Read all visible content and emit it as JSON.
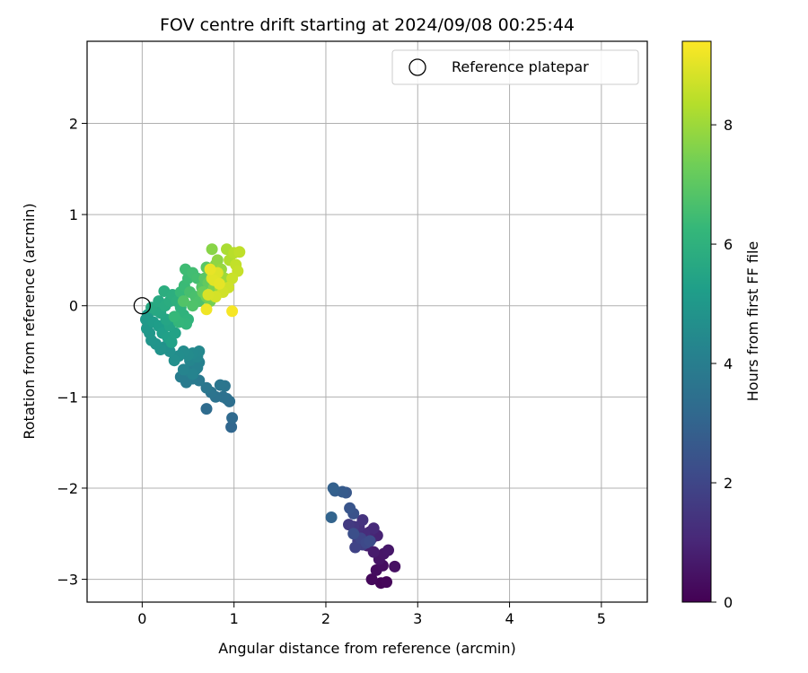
{
  "chart_data": {
    "type": "scatter",
    "title": "FOV centre drift starting at 2024/09/08 00:25:44",
    "xlabel": "Angular distance from reference (arcmin)",
    "ylabel": "Rotation from reference (arcmin)",
    "xlim": [
      -0.6,
      5.5
    ],
    "ylim": [
      -3.25,
      2.9
    ],
    "xticks": [
      0,
      1,
      2,
      3,
      4,
      5
    ],
    "xtick_labels": [
      "0",
      "1",
      "2",
      "3",
      "4",
      "5"
    ],
    "yticks": [
      -3,
      -2,
      -1,
      0,
      1,
      2
    ],
    "ytick_labels": [
      "−3",
      "−2",
      "−1",
      "0",
      "1",
      "2"
    ],
    "grid": true,
    "legend": {
      "position": "upper right",
      "entries": [
        "Reference platepar"
      ]
    },
    "reference_point": {
      "x": 0,
      "y": 0,
      "label": "Reference platepar"
    },
    "colorbar": {
      "label": "Hours from first FF file",
      "colormap": "viridis",
      "range": [
        0,
        9.4
      ],
      "ticks": [
        0,
        2,
        4,
        6,
        8
      ],
      "tick_labels": [
        "0",
        "2",
        "4",
        "6",
        "8"
      ]
    },
    "colors": {
      "reference_marker": "#000000",
      "grid": "#b0b0b0",
      "viridis": [
        "#440154",
        "#482878",
        "#3e4989",
        "#31688e",
        "#26828e",
        "#1f9e89",
        "#35b779",
        "#6ece58",
        "#b5de2b",
        "#fde725"
      ]
    },
    "series": [
      {
        "points": [
          [
            2.6,
            -3.04,
            0.1
          ],
          [
            2.66,
            -3.03,
            0.15
          ],
          [
            2.5,
            -3.0,
            0.2
          ],
          [
            2.55,
            -2.9,
            0.3
          ],
          [
            2.62,
            -2.85,
            0.35
          ],
          [
            2.75,
            -2.86,
            0.4
          ],
          [
            2.58,
            -2.78,
            0.5
          ],
          [
            2.63,
            -2.72,
            0.55
          ],
          [
            2.68,
            -2.68,
            0.6
          ],
          [
            2.52,
            -2.7,
            0.7
          ],
          [
            2.45,
            -2.63,
            0.75
          ],
          [
            2.5,
            -2.55,
            0.8
          ],
          [
            2.56,
            -2.52,
            0.9
          ],
          [
            2.48,
            -2.48,
            1.0
          ],
          [
            2.52,
            -2.44,
            1.1
          ],
          [
            2.42,
            -2.5,
            1.2
          ],
          [
            2.36,
            -2.42,
            1.3
          ],
          [
            2.4,
            -2.35,
            1.4
          ],
          [
            2.3,
            -2.42,
            1.5
          ],
          [
            2.25,
            -2.4,
            1.6
          ],
          [
            2.35,
            -2.58,
            1.7
          ],
          [
            2.4,
            -2.62,
            1.8
          ],
          [
            2.32,
            -2.65,
            1.9
          ],
          [
            2.38,
            -2.55,
            2.0
          ],
          [
            2.44,
            -2.6,
            2.1
          ],
          [
            2.48,
            -2.58,
            2.2
          ],
          [
            2.3,
            -2.5,
            2.3
          ],
          [
            2.3,
            -2.28,
            2.4
          ],
          [
            2.26,
            -2.22,
            2.5
          ],
          [
            2.22,
            -2.05,
            2.6
          ],
          [
            2.18,
            -2.04,
            2.7
          ],
          [
            2.1,
            -2.03,
            2.8
          ],
          [
            2.08,
            -2.0,
            2.9
          ],
          [
            2.06,
            -2.32,
            3.0
          ],
          [
            0.97,
            -1.33,
            3.1
          ],
          [
            0.98,
            -1.23,
            3.2
          ],
          [
            0.7,
            -1.13,
            3.3
          ],
          [
            0.95,
            -1.05,
            3.4
          ],
          [
            0.92,
            -1.02,
            3.45
          ],
          [
            0.88,
            -1.0,
            3.5
          ],
          [
            0.8,
            -1.0,
            3.55
          ],
          [
            0.75,
            -0.95,
            3.6
          ],
          [
            0.9,
            -0.88,
            3.65
          ],
          [
            0.85,
            -0.87,
            3.7
          ],
          [
            0.7,
            -0.9,
            3.75
          ],
          [
            0.62,
            -0.82,
            3.8
          ],
          [
            0.55,
            -0.8,
            3.85
          ],
          [
            0.48,
            -0.84,
            3.9
          ],
          [
            0.42,
            -0.78,
            3.95
          ],
          [
            0.5,
            -0.72,
            4.0
          ],
          [
            0.58,
            -0.7,
            4.05
          ],
          [
            0.62,
            -0.62,
            4.1
          ],
          [
            0.6,
            -0.68,
            4.15
          ],
          [
            0.55,
            -0.75,
            4.2
          ],
          [
            0.45,
            -0.7,
            4.25
          ],
          [
            0.52,
            -0.6,
            4.3
          ],
          [
            0.6,
            -0.56,
            4.35
          ],
          [
            0.62,
            -0.5,
            4.4
          ],
          [
            0.55,
            -0.52,
            4.45
          ],
          [
            0.5,
            -0.54,
            4.5
          ],
          [
            0.45,
            -0.5,
            4.55
          ],
          [
            0.4,
            -0.55,
            4.6
          ],
          [
            0.35,
            -0.6,
            4.65
          ],
          [
            0.3,
            -0.5,
            4.7
          ],
          [
            0.25,
            -0.45,
            4.75
          ],
          [
            0.2,
            -0.48,
            4.8
          ],
          [
            0.15,
            -0.42,
            4.85
          ],
          [
            0.1,
            -0.38,
            4.9
          ],
          [
            0.08,
            -0.3,
            4.95
          ],
          [
            0.05,
            -0.25,
            5.0
          ],
          [
            0.04,
            -0.15,
            5.05
          ],
          [
            0.06,
            -0.1,
            5.1
          ],
          [
            0.12,
            -0.18,
            5.15
          ],
          [
            0.18,
            -0.22,
            5.2
          ],
          [
            0.22,
            -0.3,
            5.25
          ],
          [
            0.28,
            -0.35,
            5.3
          ],
          [
            0.32,
            -0.4,
            5.35
          ],
          [
            0.36,
            -0.3,
            5.4
          ],
          [
            0.3,
            -0.22,
            5.45
          ],
          [
            0.26,
            -0.15,
            5.5
          ],
          [
            0.2,
            -0.08,
            5.55
          ],
          [
            0.15,
            -0.05,
            5.6
          ],
          [
            0.1,
            -0.02,
            5.65
          ],
          [
            0.18,
            0.05,
            5.7
          ],
          [
            0.25,
            0.0,
            5.75
          ],
          [
            0.3,
            0.05,
            5.8
          ],
          [
            0.24,
            0.16,
            5.85
          ],
          [
            0.33,
            0.12,
            5.9
          ],
          [
            0.38,
            0.05,
            5.95
          ],
          [
            0.42,
            -0.02,
            6.0
          ],
          [
            0.45,
            -0.1,
            6.05
          ],
          [
            0.5,
            -0.15,
            6.1
          ],
          [
            0.48,
            -0.2,
            6.15
          ],
          [
            0.4,
            -0.18,
            6.2
          ],
          [
            0.35,
            -0.12,
            6.25
          ],
          [
            0.42,
            0.15,
            6.3
          ],
          [
            0.46,
            0.22,
            6.35
          ],
          [
            0.5,
            0.3,
            6.4
          ],
          [
            0.47,
            0.4,
            6.45
          ],
          [
            0.55,
            0.36,
            6.5
          ],
          [
            0.6,
            0.3,
            6.55
          ],
          [
            0.52,
            0.15,
            6.6
          ],
          [
            0.58,
            0.1,
            6.65
          ],
          [
            0.62,
            0.05,
            6.7
          ],
          [
            0.55,
            0.0,
            6.75
          ],
          [
            0.45,
            0.05,
            6.8
          ],
          [
            0.65,
            0.2,
            6.85
          ],
          [
            0.68,
            0.3,
            6.9
          ],
          [
            0.7,
            0.42,
            6.95
          ],
          [
            0.75,
            0.35,
            7.0
          ],
          [
            0.72,
            0.25,
            7.1
          ],
          [
            0.66,
            0.15,
            7.2
          ],
          [
            0.7,
            0.1,
            7.3
          ],
          [
            0.74,
            0.05,
            7.4
          ],
          [
            0.78,
            0.2,
            7.5
          ],
          [
            0.8,
            0.45,
            7.6
          ],
          [
            0.76,
            0.62,
            7.7
          ],
          [
            0.82,
            0.5,
            7.8
          ],
          [
            0.86,
            0.4,
            7.9
          ],
          [
            0.9,
            0.3,
            8.0
          ],
          [
            0.85,
            0.2,
            8.1
          ],
          [
            0.92,
            0.62,
            8.2
          ],
          [
            0.95,
            0.5,
            8.3
          ],
          [
            1.0,
            0.58,
            8.4
          ],
          [
            1.06,
            0.59,
            8.5
          ],
          [
            1.02,
            0.45,
            8.55
          ],
          [
            1.04,
            0.38,
            8.6
          ],
          [
            0.98,
            0.3,
            8.65
          ],
          [
            0.94,
            0.2,
            8.7
          ],
          [
            0.88,
            0.15,
            8.75
          ],
          [
            0.8,
            0.1,
            8.8
          ],
          [
            0.72,
            0.12,
            8.85
          ],
          [
            0.76,
            0.3,
            8.9
          ],
          [
            0.82,
            0.36,
            8.95
          ],
          [
            0.78,
            0.28,
            9.0
          ],
          [
            0.84,
            0.24,
            9.05
          ],
          [
            0.74,
            0.4,
            9.1
          ],
          [
            0.7,
            -0.04,
            9.2
          ],
          [
            0.98,
            -0.06,
            9.3
          ]
        ]
      }
    ]
  }
}
